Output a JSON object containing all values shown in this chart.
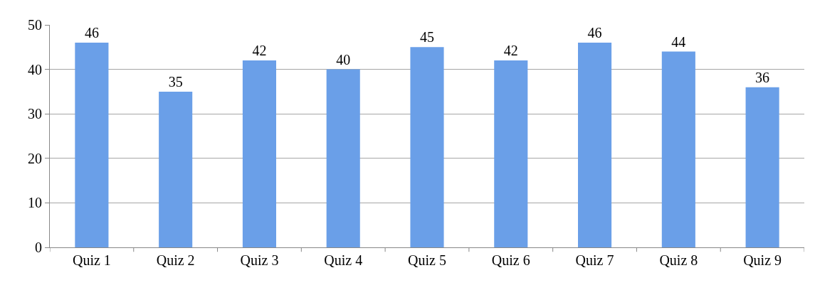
{
  "chart_data": {
    "type": "bar",
    "categories": [
      "Quiz 1",
      "Quiz 2",
      "Quiz 3",
      "Quiz 4",
      "Quiz 5",
      "Quiz 6",
      "Quiz 7",
      "Quiz 8",
      "Quiz 9"
    ],
    "values": [
      46,
      35,
      42,
      40,
      45,
      42,
      46,
      44,
      36
    ],
    "color": "#6a9fe8",
    "ylim": [
      0,
      50
    ],
    "yticks": [
      0,
      10,
      20,
      30,
      40,
      50
    ],
    "grid": "y",
    "data_labels": true
  }
}
